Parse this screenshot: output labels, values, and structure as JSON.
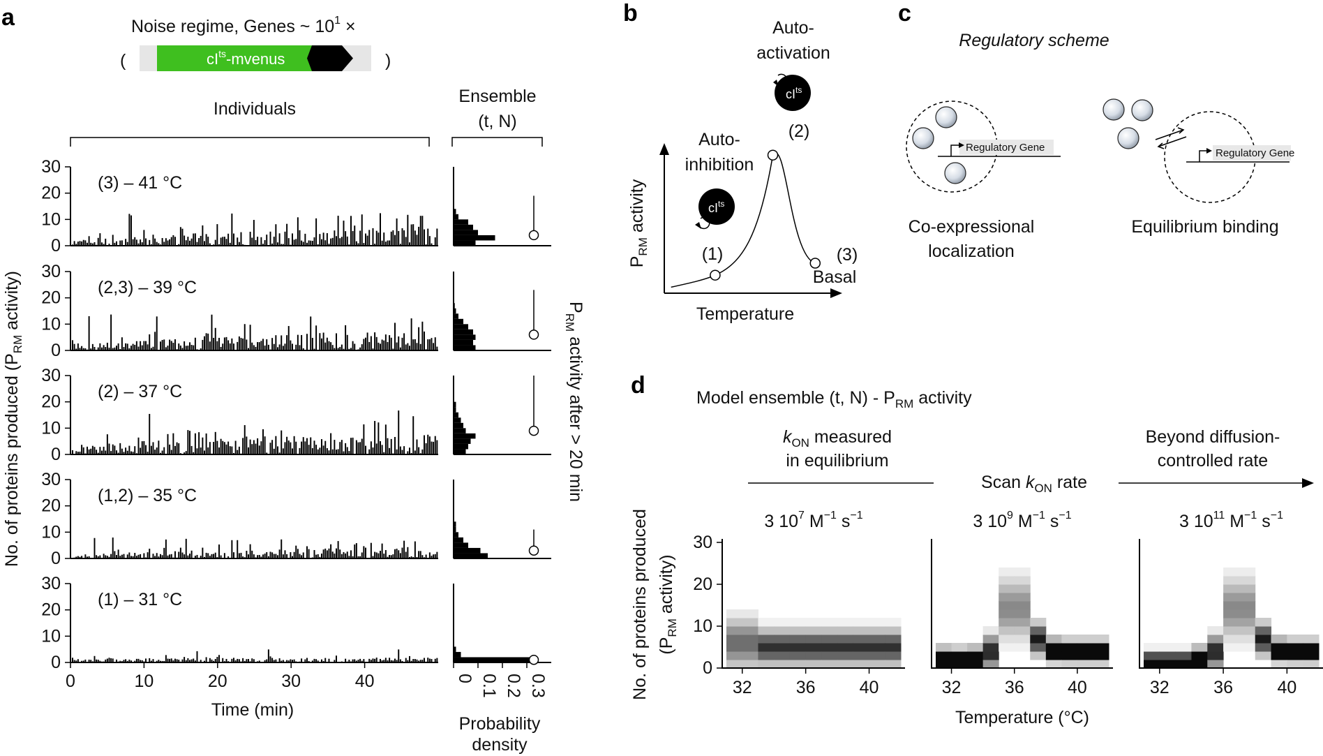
{
  "panel_letters": {
    "a": "a",
    "b": "b",
    "c": "c",
    "d": "d"
  },
  "panel_a": {
    "construct": {
      "title": "Noise regime, Genes ~ 10",
      "title_sup": "1",
      "title_suffix": " ×",
      "paren_open": "(",
      "paren_close": ")",
      "gene_label": "cI",
      "gene_sup": "ts",
      "gene_suffix": "-mvenus"
    },
    "individuals_label": "Individuals",
    "ensemble_label_1": "Ensemble",
    "ensemble_label_2": "(t, N)",
    "ylabel_prefix": "No. of proteins produced (P",
    "ylabel_sub": "RM",
    "ylabel_suffix": " activity)",
    "xlabel": "Time (min)",
    "hist_xlabel_1": "Probability",
    "hist_xlabel_2": "density",
    "right_label_prefix": "P",
    "right_label_sub": "RM",
    "right_label_suffix": " activity after > 20 min",
    "colors": {
      "bar": "#000000",
      "gene_arrow": "#3fbf1f",
      "backbone": "#e6e6e6"
    }
  },
  "panel_b": {
    "label_auto_activation_1": "Auto-",
    "label_auto_activation_2": "activation",
    "label_auto_inhibition_1": "Auto-",
    "label_auto_inhibition_2": "inhibition",
    "ylabel_prefix": "P",
    "ylabel_sub": "RM",
    "ylabel_suffix": " activity",
    "xlabel": "Temperature",
    "point_1": "(1)",
    "point_2": "(2)",
    "point_3": "(3)",
    "basal": "Basal",
    "protein_label": "cI",
    "protein_sup": "ts"
  },
  "panel_c": {
    "title": "Regulatory scheme",
    "gene_label": "Regulatory Gene",
    "left_caption_1": "Co-expressional",
    "left_caption_2": "localization",
    "right_caption": "Equilibrium binding"
  },
  "panel_d": {
    "title_prefix": "Model ensemble (t, N) - P",
    "title_sub": "RM",
    "title_suffix": " activity",
    "k_measured_1_italic": "k",
    "k_measured_1_sub": "ON",
    "k_measured_1_rest": " measured",
    "k_measured_2": "in equilibrium",
    "scan_prefix": "Scan ",
    "scan_k": "k",
    "scan_sub": "ON",
    "scan_suffix": " rate",
    "beyond_1": "Beyond diffusion-",
    "beyond_2": "controlled rate",
    "ylabel_1": "No. of proteins produced",
    "ylabel_2_prefix": "(P",
    "ylabel_2_sub": "RM",
    "ylabel_2_suffix": " activity)",
    "xlabel": "Temperature (°C)"
  },
  "chart_data": [
    {
      "type": "bar",
      "id": "a-traces",
      "xlabel": "Time (min)",
      "ylabel": "No. of proteins produced (PRM activity)",
      "xlim": [
        0,
        50
      ],
      "ylim": [
        0,
        30
      ],
      "xticks": [
        0,
        10,
        20,
        30,
        40
      ],
      "yticks": [
        0,
        10,
        20,
        30
      ],
      "panels": [
        {
          "label": "(3) – 41 °C",
          "max": 13,
          "ramp": 0.85
        },
        {
          "label": "(2,3) – 39 °C",
          "max": 14,
          "ramp": 0.75
        },
        {
          "label": "(2) – 37 °C",
          "max": 17,
          "ramp": 0.6
        },
        {
          "label": "(1,2) – 35 °C",
          "max": 8,
          "ramp": 0.7
        },
        {
          "label": "(1) – 31 °C",
          "max": 5,
          "ramp": 0.2
        }
      ]
    },
    {
      "type": "bar",
      "id": "a-histograms",
      "orientation": "horizontal",
      "xlabel": "Probability density",
      "xlim": [
        0,
        0.4
      ],
      "xticks": [
        0,
        0.1,
        0.2,
        0.3
      ],
      "xtick_labels": [
        "0",
        "0.1",
        "0.2",
        "0.3"
      ],
      "bin_edges": [
        0,
        2,
        4,
        6,
        8,
        10,
        12,
        14,
        16,
        18,
        20
      ],
      "series": [
        {
          "name": "(3) – 41 °C",
          "values": [
            0.09,
            0.17,
            0.1,
            0.08,
            0.06,
            0.02,
            0.01,
            0,
            0,
            0
          ],
          "median": 4,
          "whisker": [
            4,
            19
          ]
        },
        {
          "name": "(2,3) – 39 °C",
          "values": [
            0.09,
            0.08,
            0.09,
            0.08,
            0.06,
            0.04,
            0.02,
            0.01,
            0.005,
            0
          ],
          "median": 6,
          "whisker": [
            6,
            23
          ]
        },
        {
          "name": "(2) – 37 °C",
          "values": [
            0.05,
            0.06,
            0.07,
            0.09,
            0.05,
            0.04,
            0.03,
            0.02,
            0.01,
            0.01
          ],
          "median": 9,
          "whisker": [
            9,
            30
          ]
        },
        {
          "name": "(1,2) – 35 °C",
          "values": [
            0.14,
            0.11,
            0.06,
            0.04,
            0.02,
            0.01,
            0.01,
            0,
            0,
            0
          ],
          "median": 3,
          "whisker": [
            3,
            11
          ]
        },
        {
          "name": "(1) – 31 °C",
          "values": [
            0.33,
            0.03,
            0.01,
            0,
            0,
            0,
            0,
            0,
            0,
            0
          ],
          "median": 1,
          "whisker": [
            1,
            2
          ]
        }
      ]
    },
    {
      "type": "line",
      "id": "b-schematic",
      "xlabel": "Temperature",
      "ylabel": "PRM activity",
      "points": [
        {
          "label": "(1)",
          "x": 0.3,
          "y": 0.12
        },
        {
          "label": "(2)",
          "x": 0.64,
          "y": 0.92
        },
        {
          "label": "(3)",
          "x": 0.89,
          "y": 0.2
        }
      ]
    },
    {
      "type": "heatmap",
      "id": "d-heatmaps",
      "xlabel": "Temperature (°C)",
      "ylabel": "No. of proteins produced (PRM activity)",
      "xlim": [
        31,
        42
      ],
      "ylim": [
        0,
        30
      ],
      "xticks": [
        32,
        36,
        40
      ],
      "yticks": [
        0,
        10,
        20,
        30
      ],
      "panels": [
        {
          "rate_label": "3 10",
          "rate_exp": "7",
          "rate_units": " M",
          "units_exp_1": "−1",
          "units_s": " s",
          "units_exp_2": "−1",
          "mode": "flat",
          "peak": 0
        },
        {
          "rate_label": "3 10",
          "rate_exp": "9",
          "rate_units": " M",
          "units_exp_1": "−1",
          "units_s": " s",
          "units_exp_2": "−1",
          "mode": "peak",
          "peak": 36
        },
        {
          "rate_label": "3 10",
          "rate_exp": "11",
          "rate_units": " M",
          "units_exp_1": "−1",
          "units_s": " s",
          "units_exp_2": "−1",
          "mode": "peak",
          "peak": 37
        }
      ]
    }
  ]
}
